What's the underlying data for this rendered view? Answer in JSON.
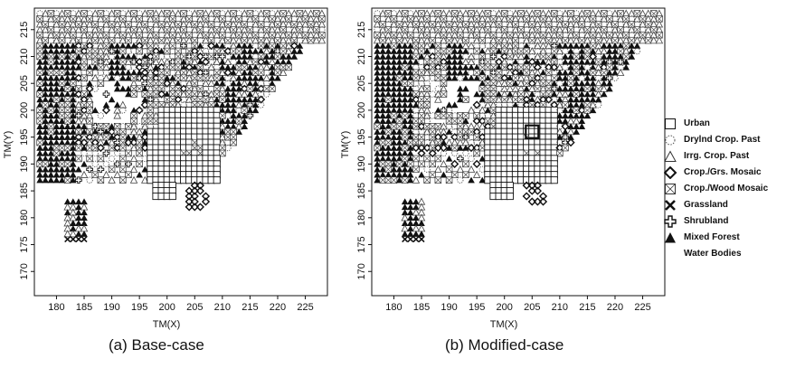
{
  "chart_data": [
    {
      "type": "scatter",
      "title": "",
      "caption": "(a) Base-case",
      "xlabel": "TM(X)",
      "ylabel": "TM(Y)",
      "xlim": [
        176,
        229
      ],
      "ylim": [
        165.5,
        219
      ],
      "xticks": [
        180,
        185,
        190,
        195,
        200,
        205,
        210,
        215,
        220,
        225
      ],
      "yticks": [
        170,
        175,
        180,
        185,
        190,
        195,
        200,
        205,
        210,
        215
      ],
      "grid": false,
      "highlight_cell": null
    },
    {
      "type": "scatter",
      "title": "",
      "caption": "(b) Modified-case",
      "xlabel": "TM(X)",
      "ylabel": "TM(Y)",
      "xlim": [
        176,
        229
      ],
      "ylim": [
        165.5,
        219
      ],
      "xticks": [
        180,
        185,
        190,
        195,
        200,
        205,
        210,
        215,
        220,
        225
      ],
      "yticks": [
        170,
        175,
        180,
        185,
        190,
        195,
        200,
        205,
        210,
        215
      ],
      "grid": false,
      "highlight_cell": [
        205,
        196
      ]
    }
  ],
  "legend": {
    "placement": "right",
    "items": [
      {
        "label": "Urban",
        "icon": "square-icon"
      },
      {
        "label": "Drylnd Crop. Past",
        "icon": "dotted-circle-icon"
      },
      {
        "label": "Irrg. Crop. Past",
        "icon": "triangle-outline-icon"
      },
      {
        "label": "Crop./Grs. Mosaic",
        "icon": "diamond-icon"
      },
      {
        "label": "Crop./Wood Mosaic",
        "icon": "crossed-square-icon"
      },
      {
        "label": "Grassland",
        "icon": "x-cross-icon"
      },
      {
        "label": "Shrubland",
        "icon": "plus-outline-icon"
      },
      {
        "label": "Mixed Forest",
        "icon": "filled-triangle-icon"
      },
      {
        "label": "Water Bodies",
        "icon": "none"
      }
    ]
  }
}
